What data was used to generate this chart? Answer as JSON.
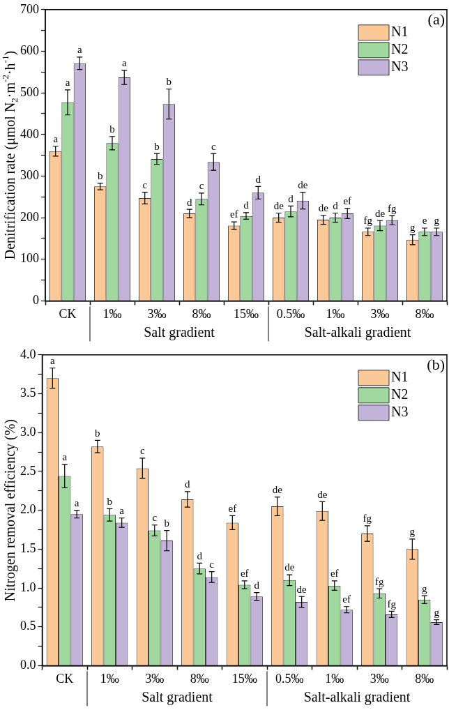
{
  "chart_data": [
    {
      "type": "bar",
      "title": "(a)",
      "ylabel": "Denitrification rate (μmol N$_{2}$·m$^{-2}$·h$^{-1}$)",
      "categories": [
        "CK",
        "1‰",
        "3‰",
        "8‰",
        "15‰",
        "0.5‰",
        "1‰",
        "3‰",
        "8‰"
      ],
      "series": [
        {
          "name": "N1",
          "color": "#fbc898",
          "values": [
            360,
            275,
            247,
            210,
            181,
            200,
            195,
            166,
            147
          ],
          "errors": [
            12,
            8,
            14,
            10,
            9,
            11,
            11,
            9,
            12
          ],
          "value_labels": [
            "a",
            "b",
            "c",
            "d",
            "ef",
            "de",
            "de",
            "fg",
            "g"
          ]
        },
        {
          "name": "N2",
          "color": "#a0d8a0",
          "values": [
            477,
            379,
            341,
            245,
            204,
            215,
            200,
            181,
            166
          ],
          "errors": [
            30,
            16,
            13,
            14,
            8,
            13,
            11,
            12,
            9
          ],
          "value_labels": [
            "a",
            "b",
            "b",
            "c",
            "d",
            "d",
            "d",
            "de",
            "e"
          ]
        },
        {
          "name": "N3",
          "color": "#c3b3d8",
          "values": [
            571,
            537,
            473,
            334,
            260,
            241,
            210,
            194,
            166
          ],
          "errors": [
            15,
            17,
            36,
            20,
            15,
            20,
            12,
            11,
            9
          ],
          "value_labels": [
            "a",
            "a",
            "b",
            "c",
            "d",
            "de",
            "ef",
            "fg",
            "g"
          ]
        }
      ],
      "ylim": [
        0,
        700
      ],
      "yticks": [
        0,
        {
          "value": 50,
          "label": null
        },
        100,
        {
          "value": 150,
          "label": null
        },
        200,
        {
          "value": 250,
          "label": null
        },
        300,
        {
          "value": 350,
          "label": null
        },
        400,
        {
          "value": 450,
          "label": null
        },
        500,
        {
          "value": 550,
          "label": null
        },
        600,
        {
          "value": 650,
          "label": null
        },
        700
      ],
      "legend": "top right",
      "annotations": [
        "Salt gradient",
        "Salt-alkali gradient"
      ]
    },
    {
      "type": "bar",
      "title": "(b)",
      "ylabel": "Nitrogen removal efficiency (%)",
      "categories": [
        "CK",
        "1‰",
        "3‰",
        "8‰",
        "15‰",
        "0.5‰",
        "1‰",
        "3‰",
        "8‰"
      ],
      "series": [
        {
          "name": "N1",
          "color": "#fbc898",
          "values": [
            3.7,
            2.82,
            2.54,
            2.14,
            1.84,
            2.05,
            1.99,
            1.7,
            1.5
          ],
          "errors": [
            0.13,
            0.08,
            0.13,
            0.1,
            0.09,
            0.12,
            0.12,
            0.1,
            0.13
          ],
          "value_labels": [
            "a",
            "b",
            "c",
            "d",
            "ef",
            "de",
            "de",
            "fg",
            "g"
          ]
        },
        {
          "name": "N2",
          "color": "#a0d8a0",
          "values": [
            2.44,
            1.94,
            1.74,
            1.25,
            1.04,
            1.1,
            1.03,
            0.93,
            0.85
          ],
          "errors": [
            0.15,
            0.08,
            0.07,
            0.07,
            0.05,
            0.07,
            0.06,
            0.06,
            0.05
          ],
          "value_labels": [
            "a",
            "b",
            "c",
            "d",
            "ef",
            "de",
            "ef",
            "fg",
            "g"
          ]
        },
        {
          "name": "N3",
          "color": "#c3b3d8",
          "values": [
            1.95,
            1.84,
            1.61,
            1.14,
            0.89,
            0.82,
            0.72,
            0.66,
            0.56
          ],
          "errors": [
            0.05,
            0.06,
            0.13,
            0.07,
            0.05,
            0.07,
            0.04,
            0.04,
            0.03
          ],
          "value_labels": [
            "a",
            "a",
            "b",
            "c",
            "d",
            "de",
            "ef",
            "fg",
            "g"
          ]
        }
      ],
      "ylim": [
        0,
        4
      ],
      "yticks": [
        {
          "value": 0,
          "label": "0.0"
        },
        {
          "value": 0.25,
          "label": null
        },
        {
          "value": 0.5,
          "label": "0.5"
        },
        {
          "value": 0.75,
          "label": null
        },
        {
          "value": 1,
          "label": "1.0"
        },
        {
          "value": 1.25,
          "label": null
        },
        {
          "value": 1.5,
          "label": "1.5"
        },
        {
          "value": 1.75,
          "label": null
        },
        {
          "value": 2,
          "label": "2.0"
        },
        {
          "value": 2.25,
          "label": null
        },
        {
          "value": 2.5,
          "label": "2.5"
        },
        {
          "value": 2.75,
          "label": null
        },
        {
          "value": 3,
          "label": "3.0"
        },
        {
          "value": 3.25,
          "label": null
        },
        {
          "value": 3.5,
          "label": "3.5"
        },
        {
          "value": 3.75,
          "label": null
        },
        {
          "value": 4,
          "label": "4.0"
        }
      ],
      "legend": "top right",
      "annotations": [
        "Salt gradient",
        "Salt-alkali gradient"
      ]
    }
  ]
}
